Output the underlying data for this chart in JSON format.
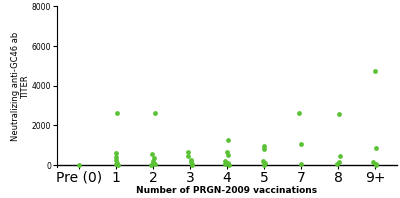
{
  "categories": [
    "Pre (0)",
    "1",
    "2",
    "3",
    "4",
    "5",
    "7",
    "8",
    "9+"
  ],
  "data_points": {
    "Pre (0)": [
      30
    ],
    "1": [
      2650,
      600,
      400,
      250,
      130,
      60,
      20
    ],
    "2": [
      2650,
      550,
      380,
      230,
      120,
      50,
      15
    ],
    "3": [
      680,
      450,
      280,
      160,
      80,
      30
    ],
    "4": [
      1250,
      680,
      500,
      230,
      90,
      40,
      15
    ],
    "5": [
      950,
      800,
      220,
      110,
      50,
      15
    ],
    "7": [
      2650,
      1050,
      80
    ],
    "8": [
      2580,
      480,
      160,
      40
    ],
    "9+": [
      4750,
      850,
      170,
      80,
      15
    ]
  },
  "dot_color": "#5BC236",
  "dot_size": 12,
  "xlabel": "Number of PRGN-2009 vaccinations",
  "ylabel": "Neutralizing anti-GC46 ab\nTITER",
  "ylim": [
    -100,
    8000
  ],
  "yticks": [
    0,
    2000,
    4000,
    6000,
    8000
  ],
  "xlabel_fontsize": 6.5,
  "ylabel_fontsize": 6,
  "tick_fontsize": 5.5,
  "background_color": "#ffffff"
}
